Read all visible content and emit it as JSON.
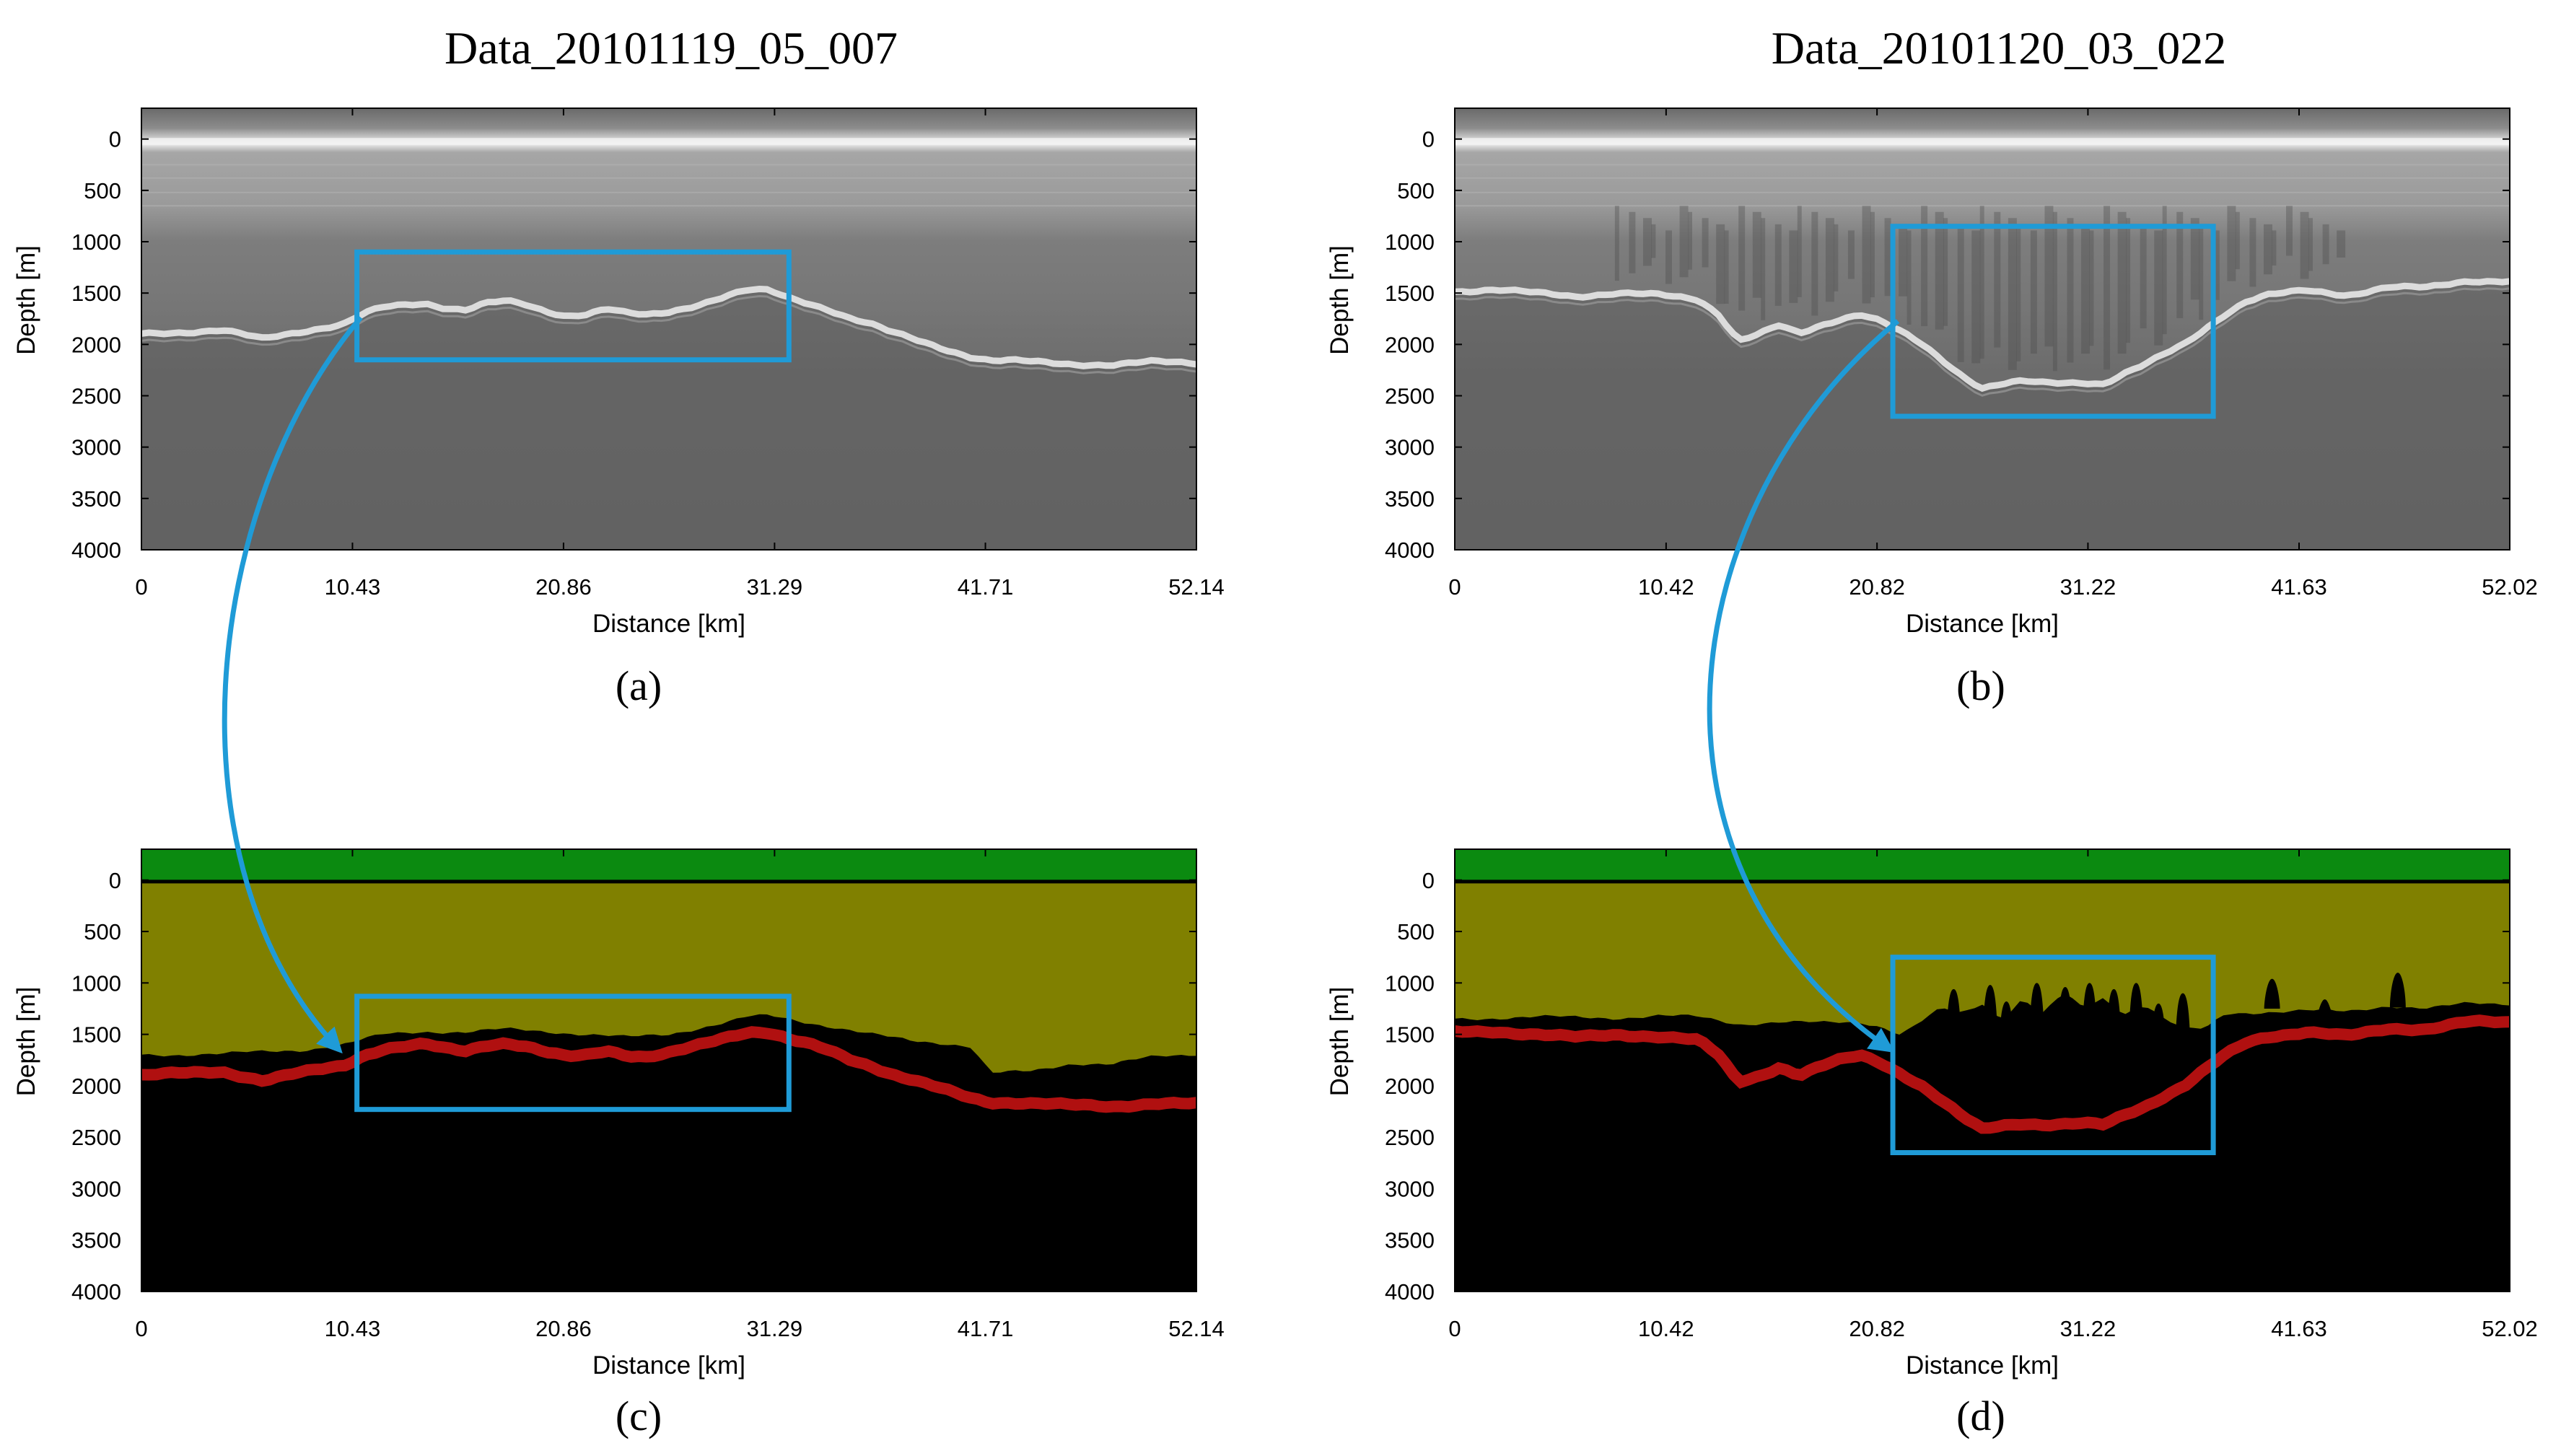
{
  "captions": {
    "a": "(a)",
    "b": "(b)",
    "c": "(c)",
    "d": "(d)"
  },
  "titles": {
    "left": "Data_20101119_05_007",
    "right": "Data_20101120_03_022"
  },
  "colors": {
    "highlight": "#1f9bd7",
    "air": "#0b8a10",
    "ice": "#808000",
    "bed": "#b01010",
    "rock": "#000000"
  },
  "chart_data": [
    {
      "id": "a",
      "type": "heatmap",
      "kind": "radargram",
      "title": "Data_20101119_05_007",
      "xlabel": "Distance [km]",
      "ylabel": "Depth [m]",
      "xticks": [
        "0",
        "10.43",
        "20.86",
        "31.29",
        "41.71",
        "52.14"
      ],
      "yticks": [
        "0",
        "500",
        "1000",
        "1500",
        "2000",
        "2500",
        "3000",
        "3500",
        "4000"
      ],
      "xlim": [
        0,
        52.14
      ],
      "ylim": [
        4000,
        -300
      ],
      "highlight_box": {
        "x": [
          10.65,
          32.0
        ],
        "y": [
          1100,
          2150
        ]
      },
      "bed_profile": {
        "x": [
          0,
          2,
          4,
          6,
          8,
          10,
          11,
          12,
          13,
          14,
          15,
          16,
          17,
          18,
          19,
          20,
          21,
          22,
          23,
          24,
          25,
          26,
          27,
          28,
          29,
          30,
          31,
          32,
          33,
          34,
          35,
          36,
          37,
          38,
          39,
          40,
          41,
          42,
          43,
          44,
          45,
          46,
          48,
          50,
          52.14
        ],
        "y": [
          1900,
          1880,
          1860,
          1950,
          1870,
          1800,
          1700,
          1640,
          1620,
          1600,
          1640,
          1660,
          1600,
          1580,
          1620,
          1680,
          1720,
          1700,
          1650,
          1700,
          1720,
          1690,
          1640,
          1580,
          1520,
          1470,
          1480,
          1550,
          1600,
          1660,
          1740,
          1800,
          1880,
          1940,
          2000,
          2060,
          2120,
          2160,
          2160,
          2170,
          2180,
          2190,
          2200,
          2170,
          2180
        ]
      }
    },
    {
      "id": "b",
      "type": "heatmap",
      "kind": "radargram",
      "title": "Data_20101120_03_022",
      "xlabel": "Distance [km]",
      "ylabel": "Depth [m]",
      "xticks": [
        "0",
        "10.42",
        "20.82",
        "31.22",
        "41.63",
        "52.02"
      ],
      "yticks": [
        "0",
        "500",
        "1000",
        "1500",
        "2000",
        "2500",
        "3000",
        "3500",
        "4000"
      ],
      "xlim": [
        0,
        52.02
      ],
      "ylim": [
        4000,
        -300
      ],
      "highlight_box": {
        "x": [
          21.6,
          37.4
        ],
        "y": [
          850,
          2700
        ]
      },
      "bed_profile": {
        "x": [
          0,
          2,
          4,
          6,
          8,
          10,
          12,
          13,
          14,
          15,
          16,
          17,
          18,
          19,
          20,
          21,
          22,
          23,
          24,
          25,
          26,
          27,
          28,
          29,
          30,
          31,
          32,
          33,
          34,
          35,
          36,
          37,
          38,
          39,
          40,
          42,
          44,
          46,
          48,
          50,
          52.02
        ],
        "y": [
          1480,
          1470,
          1500,
          1530,
          1500,
          1520,
          1560,
          1700,
          1960,
          1900,
          1820,
          1900,
          1820,
          1750,
          1700,
          1770,
          1880,
          2000,
          2150,
          2300,
          2420,
          2380,
          2360,
          2380,
          2380,
          2370,
          2380,
          2280,
          2200,
          2100,
          2000,
          1850,
          1700,
          1580,
          1520,
          1480,
          1520,
          1440,
          1450,
          1380,
          1380
        ]
      }
    },
    {
      "id": "c",
      "type": "heatmap",
      "kind": "segmentation",
      "title": "",
      "xlabel": "Distance [km]",
      "ylabel": "Depth [m]",
      "xticks": [
        "0",
        "10.43",
        "20.86",
        "31.29",
        "41.71",
        "52.14"
      ],
      "yticks": [
        "0",
        "500",
        "1000",
        "1500",
        "2000",
        "2500",
        "3000",
        "3500",
        "4000"
      ],
      "xlim": [
        0,
        52.14
      ],
      "ylim": [
        4000,
        -300
      ],
      "highlight_box": {
        "x": [
          10.65,
          32.0
        ],
        "y": [
          1130,
          2230
        ]
      },
      "classes": [
        "air",
        "ice",
        "ice-bottom",
        "bed",
        "rock"
      ],
      "bed_profile": {
        "x": [
          0,
          2,
          4,
          6,
          8,
          10,
          11,
          12,
          13,
          14,
          15,
          16,
          17,
          18,
          19,
          20,
          21,
          22,
          23,
          24,
          25,
          26,
          27,
          28,
          29,
          30,
          31,
          32,
          33,
          34,
          35,
          36,
          37,
          38,
          39,
          40,
          41,
          42,
          43,
          44,
          45,
          46,
          48,
          50,
          52.14
        ],
        "y": [
          1900,
          1880,
          1860,
          1950,
          1870,
          1800,
          1700,
          1640,
          1620,
          1600,
          1640,
          1660,
          1600,
          1580,
          1620,
          1680,
          1720,
          1700,
          1650,
          1700,
          1720,
          1690,
          1640,
          1580,
          1520,
          1470,
          1480,
          1550,
          1600,
          1660,
          1740,
          1800,
          1880,
          1940,
          2000,
          2060,
          2120,
          2160,
          2160,
          2170,
          2180,
          2190,
          2200,
          2170,
          2180
        ]
      },
      "ice_bottom_profile": {
        "x": [
          0,
          4,
          8,
          10,
          12,
          14,
          16,
          18,
          20,
          22,
          24,
          26,
          28,
          29,
          30,
          31,
          32,
          34,
          36,
          38,
          40,
          41,
          42,
          44,
          46,
          48,
          50,
          52.14
        ],
        "y": [
          1700,
          1690,
          1650,
          1600,
          1500,
          1470,
          1480,
          1450,
          1470,
          1500,
          1530,
          1500,
          1420,
          1380,
          1330,
          1320,
          1350,
          1420,
          1500,
          1560,
          1590,
          1620,
          1880,
          1860,
          1780,
          1790,
          1720,
          1690
        ]
      }
    },
    {
      "id": "d",
      "type": "heatmap",
      "kind": "segmentation",
      "title": "",
      "xlabel": "Distance [km]",
      "ylabel": "Depth [m]",
      "xticks": [
        "0",
        "10.42",
        "20.82",
        "31.22",
        "41.63",
        "52.02"
      ],
      "yticks": [
        "0",
        "500",
        "1000",
        "1500",
        "2000",
        "2500",
        "3000",
        "3500",
        "4000"
      ],
      "xlim": [
        0,
        52.02
      ],
      "ylim": [
        4000,
        -300
      ],
      "highlight_box": {
        "x": [
          21.6,
          37.4
        ],
        "y": [
          750,
          2650
        ]
      },
      "classes": [
        "air",
        "ice",
        "ice-bottom",
        "bed",
        "rock"
      ],
      "bed_profile": {
        "x": [
          0,
          2,
          4,
          6,
          8,
          10,
          12,
          13,
          14,
          15,
          16,
          17,
          18,
          19,
          20,
          21,
          22,
          23,
          24,
          25,
          26,
          27,
          28,
          29,
          30,
          31,
          32,
          33,
          34,
          35,
          36,
          37,
          38,
          39,
          40,
          42,
          44,
          46,
          48,
          50,
          52.02
        ],
        "y": [
          1480,
          1470,
          1500,
          1530,
          1500,
          1520,
          1560,
          1700,
          1960,
          1900,
          1820,
          1900,
          1820,
          1750,
          1700,
          1770,
          1880,
          2000,
          2150,
          2300,
          2420,
          2380,
          2360,
          2380,
          2380,
          2370,
          2380,
          2280,
          2200,
          2100,
          2000,
          1850,
          1700,
          1580,
          1520,
          1480,
          1520,
          1440,
          1450,
          1380,
          1380
        ]
      },
      "ice_bottom_profile": {
        "x": [
          0,
          4,
          8,
          10,
          12,
          14,
          16,
          18,
          20,
          21,
          22,
          24,
          25,
          26,
          27,
          28,
          29,
          30,
          31,
          32,
          33,
          34,
          35,
          36,
          37,
          38,
          40,
          42,
          44,
          46,
          48,
          50,
          52.02
        ],
        "y": [
          1350,
          1330,
          1340,
          1320,
          1330,
          1400,
          1380,
          1390,
          1380,
          1420,
          1500,
          1250,
          1300,
          1200,
          1350,
          1150,
          1300,
          1100,
          1250,
          1150,
          1300,
          1200,
          1350,
          1450,
          1450,
          1300,
          1280,
          1270,
          1280,
          1220,
          1250,
          1200,
          1200
        ]
      },
      "ice_spikes": {
        "x": [
          24.6,
          26.4,
          27.2,
          28.7,
          30.1,
          31.3,
          32.5,
          33.6,
          34.7,
          35.9,
          40.3,
          42.9,
          46.5
        ],
        "top": [
          1060,
          1020,
          1180,
          1000,
          1040,
          1000,
          1060,
          1000,
          1200,
          1100,
          960,
          1160,
          900
        ],
        "base": [
          1980,
          1980,
          2020,
          1960,
          1920,
          2000,
          2120,
          2080,
          2060,
          1980,
          1250,
          1290,
          1240
        ]
      }
    }
  ]
}
